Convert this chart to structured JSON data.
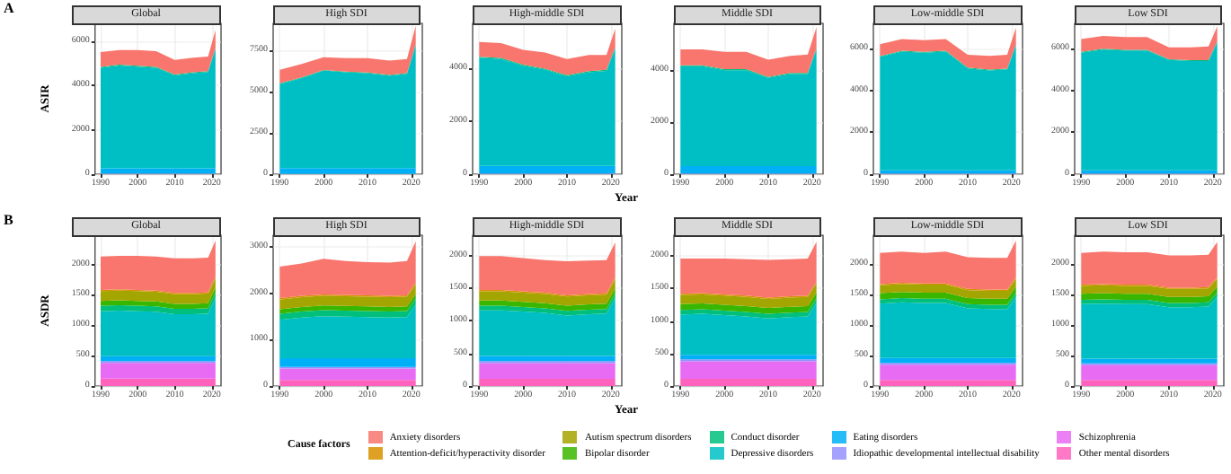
{
  "chart_data": [
    {
      "type": "area",
      "stacked": true,
      "title": "Global",
      "ylabel": "ASIR",
      "annotations": [
        "A"
      ],
      "legend": "bottom",
      "legend_title": "Cause factors",
      "grid": true,
      "x": [
        1990,
        1995,
        2000,
        2005,
        2010,
        2015,
        2019,
        2021
      ],
      "xlim": [
        1988.5,
        2022.5
      ],
      "xticks": [
        1990,
        2000,
        2010,
        2020
      ],
      "ylim": [
        0,
        6800
      ],
      "yticks": [
        0,
        2000,
        4000,
        6000
      ],
      "series": [
        {
          "name": "Other mental disorders",
          "color": "#ff62bc",
          "values": [
            20,
            20,
            20,
            20,
            20,
            20,
            20,
            20
          ]
        },
        {
          "name": "Schizophrenia",
          "color": "#e76bf3",
          "values": [
            null,
            null,
            null,
            null,
            null,
            null,
            null,
            null
          ]
        },
        {
          "name": "Idiopathic developmental intellectual disability",
          "color": "#9590ff",
          "values": [
            null,
            null,
            null,
            null,
            null,
            null,
            null,
            null
          ]
        },
        {
          "name": "Eating disorders",
          "color": "#00b0f6",
          "values": [
            240,
            240,
            240,
            240,
            240,
            240,
            240,
            240
          ]
        },
        {
          "name": "Depressive disorders",
          "color": "#00bfc4",
          "values": [
            4540,
            4640,
            4590,
            4540,
            4190,
            4290,
            4340,
            5390
          ]
        },
        {
          "name": "Conduct disorder",
          "color": "#00bf7d",
          "values": [
            40,
            40,
            40,
            40,
            40,
            40,
            40,
            40
          ]
        },
        {
          "name": "Bipolar disorder",
          "color": "#39b600",
          "values": [
            null,
            null,
            null,
            null,
            null,
            null,
            null,
            null
          ]
        },
        {
          "name": "Autism spectrum disorders",
          "color": "#a3a500",
          "values": [
            null,
            null,
            null,
            null,
            null,
            null,
            null,
            null
          ]
        },
        {
          "name": "Attention-deficit/hyperactivity disorder",
          "color": "#d89000",
          "values": [
            null,
            null,
            null,
            null,
            null,
            null,
            null,
            null
          ]
        },
        {
          "name": "Anxiety disorders",
          "color": "#f8766d",
          "values": [
            660,
            660,
            710,
            710,
            660,
            660,
            660,
            810
          ]
        }
      ]
    },
    {
      "type": "area",
      "stacked": true,
      "title": "High SDI",
      "grid": true,
      "x": [
        1990,
        1995,
        2000,
        2005,
        2010,
        2015,
        2019,
        2021
      ],
      "xlim": [
        1988.5,
        2022.5
      ],
      "xticks": [
        1990,
        2000,
        2010,
        2020
      ],
      "ylim": [
        0,
        9100
      ],
      "yticks": [
        0,
        2500,
        5000,
        7500
      ],
      "series": [
        {
          "color": "#ff62bc",
          "values": [
            20,
            20,
            20,
            20,
            20,
            20,
            20,
            20
          ]
        },
        {
          "color": "#e76bf3",
          "values": [
            null,
            null,
            null,
            null,
            null,
            null,
            null,
            null
          ]
        },
        {
          "color": "#9590ff",
          "values": [
            null,
            null,
            null,
            null,
            null,
            null,
            null,
            null
          ]
        },
        {
          "color": "#00b0f6",
          "values": [
            340,
            340,
            340,
            340,
            340,
            340,
            340,
            340
          ]
        },
        {
          "color": "#00bfc4",
          "values": [
            5090,
            5440,
            5890,
            5790,
            5740,
            5590,
            5690,
            7440
          ]
        },
        {
          "color": "#00bf7d",
          "values": [
            40,
            40,
            40,
            40,
            40,
            40,
            40,
            40
          ]
        },
        {
          "color": "#39b600",
          "values": [
            null,
            null,
            null,
            null,
            null,
            null,
            null,
            null
          ]
        },
        {
          "color": "#a3a500",
          "values": [
            null,
            null,
            null,
            null,
            null,
            null,
            null,
            null
          ]
        },
        {
          "color": "#d89000",
          "values": [
            null,
            null,
            null,
            null,
            null,
            null,
            null,
            null
          ]
        },
        {
          "color": "#f8766d",
          "values": [
            810,
            810,
            760,
            810,
            860,
            860,
            860,
            1110
          ]
        }
      ]
    },
    {
      "type": "area",
      "stacked": true,
      "title": "High-middle SDI",
      "grid": true,
      "x": [
        1990,
        1995,
        2000,
        2005,
        2010,
        2015,
        2019,
        2021
      ],
      "xlim": [
        1988.5,
        2022.5
      ],
      "xticks": [
        1990,
        2000,
        2010,
        2020
      ],
      "ylim": [
        0,
        5700
      ],
      "yticks": [
        0,
        2000,
        4000
      ],
      "series": [
        {
          "color": "#ff62bc",
          "values": [
            20,
            20,
            20,
            20,
            20,
            20,
            20,
            20
          ]
        },
        {
          "color": "#e76bf3",
          "values": [
            null,
            null,
            null,
            null,
            null,
            null,
            null,
            null
          ]
        },
        {
          "color": "#9590ff",
          "values": [
            null,
            null,
            null,
            null,
            null,
            null,
            null,
            null
          ]
        },
        {
          "color": "#00b0f6",
          "values": [
            290,
            290,
            290,
            290,
            290,
            290,
            290,
            290
          ]
        },
        {
          "color": "#00bfc4",
          "values": [
            4090,
            4040,
            3790,
            3640,
            3390,
            3540,
            3590,
            4440
          ]
        },
        {
          "color": "#00bf7d",
          "values": [
            40,
            40,
            40,
            40,
            40,
            40,
            40,
            40
          ]
        },
        {
          "color": "#39b600",
          "values": [
            null,
            null,
            null,
            null,
            null,
            null,
            null,
            null
          ]
        },
        {
          "color": "#a3a500",
          "values": [
            null,
            null,
            null,
            null,
            null,
            null,
            null,
            null
          ]
        },
        {
          "color": "#d89000",
          "values": [
            null,
            null,
            null,
            null,
            null,
            null,
            null,
            null
          ]
        },
        {
          "color": "#f8766d",
          "values": [
            560,
            560,
            560,
            610,
            610,
            610,
            560,
            710
          ]
        }
      ]
    },
    {
      "type": "area",
      "stacked": true,
      "title": "Middle SDI",
      "xlabel": "Year",
      "grid": true,
      "x": [
        1990,
        1995,
        2000,
        2005,
        2010,
        2015,
        2019,
        2021
      ],
      "xlim": [
        1988.5,
        2022.5
      ],
      "xticks": [
        1990,
        2000,
        2010,
        2020
      ],
      "ylim": [
        0,
        5800
      ],
      "yticks": [
        0,
        2000,
        4000
      ],
      "series": [
        {
          "color": "#ff62bc",
          "values": [
            20,
            20,
            20,
            20,
            20,
            20,
            20,
            20
          ]
        },
        {
          "color": "#e76bf3",
          "values": [
            null,
            null,
            null,
            null,
            null,
            null,
            null,
            null
          ]
        },
        {
          "color": "#9590ff",
          "values": [
            null,
            null,
            null,
            null,
            null,
            null,
            null,
            null
          ]
        },
        {
          "color": "#00b0f6",
          "values": [
            290,
            290,
            290,
            290,
            290,
            290,
            290,
            290
          ]
        },
        {
          "color": "#00bfc4",
          "values": [
            3840,
            3840,
            3690,
            3690,
            3390,
            3540,
            3540,
            4490
          ]
        },
        {
          "color": "#00bf7d",
          "values": [
            40,
            40,
            40,
            40,
            40,
            40,
            40,
            40
          ]
        },
        {
          "color": "#39b600",
          "values": [
            null,
            null,
            null,
            null,
            null,
            null,
            null,
            null
          ]
        },
        {
          "color": "#a3a500",
          "values": [
            null,
            null,
            null,
            null,
            null,
            null,
            null,
            null
          ]
        },
        {
          "color": "#d89000",
          "values": [
            null,
            null,
            null,
            null,
            null,
            null,
            null,
            null
          ]
        },
        {
          "color": "#f8766d",
          "values": [
            610,
            610,
            660,
            660,
            660,
            660,
            710,
            810
          ]
        }
      ]
    },
    {
      "type": "area",
      "stacked": true,
      "title": "Low-middle SDI",
      "grid": true,
      "x": [
        1990,
        1995,
        2000,
        2005,
        2010,
        2015,
        2019,
        2021
      ],
      "xlim": [
        1988.5,
        2022.5
      ],
      "xticks": [
        1990,
        2000,
        2010,
        2020
      ],
      "ylim": [
        0,
        7200
      ],
      "yticks": [
        0,
        2000,
        4000,
        6000
      ],
      "series": [
        {
          "color": "#ff62bc",
          "values": [
            20,
            20,
            20,
            20,
            20,
            20,
            20,
            20
          ]
        },
        {
          "color": "#e76bf3",
          "values": [
            null,
            null,
            null,
            null,
            null,
            null,
            null,
            null
          ]
        },
        {
          "color": "#9590ff",
          "values": [
            null,
            null,
            null,
            null,
            null,
            null,
            null,
            null
          ]
        },
        {
          "color": "#00b0f6",
          "values": [
            160,
            160,
            160,
            160,
            160,
            160,
            160,
            160
          ]
        },
        {
          "color": "#00bfc4",
          "values": [
            5420,
            5670,
            5620,
            5670,
            4870,
            4770,
            4820,
            5970
          ]
        },
        {
          "color": "#00bf7d",
          "values": [
            40,
            40,
            40,
            40,
            40,
            40,
            40,
            40
          ]
        },
        {
          "color": "#39b600",
          "values": [
            null,
            null,
            null,
            null,
            null,
            null,
            null,
            null
          ]
        },
        {
          "color": "#a3a500",
          "values": [
            null,
            null,
            null,
            null,
            null,
            null,
            null,
            null
          ]
        },
        {
          "color": "#d89000",
          "values": [
            null,
            null,
            null,
            null,
            null,
            null,
            null,
            null
          ]
        },
        {
          "color": "#f8766d",
          "values": [
            560,
            560,
            560,
            560,
            610,
            660,
            660,
            810
          ]
        }
      ]
    },
    {
      "type": "area",
      "stacked": true,
      "title": "Low SDI",
      "grid": true,
      "x": [
        1990,
        1995,
        2000,
        2005,
        2010,
        2015,
        2019,
        2021
      ],
      "xlim": [
        1988.5,
        2022.5
      ],
      "xticks": [
        1990,
        2000,
        2010,
        2020
      ],
      "ylim": [
        0,
        7200
      ],
      "yticks": [
        0,
        2000,
        4000,
        6000
      ],
      "series": [
        {
          "color": "#ff62bc",
          "values": [
            20,
            20,
            20,
            20,
            20,
            20,
            20,
            20
          ]
        },
        {
          "color": "#e76bf3",
          "values": [
            null,
            null,
            null,
            null,
            null,
            null,
            null,
            null
          ]
        },
        {
          "color": "#9590ff",
          "values": [
            null,
            null,
            null,
            null,
            null,
            null,
            null,
            null
          ]
        },
        {
          "color": "#00b0f6",
          "values": [
            160,
            160,
            160,
            160,
            160,
            160,
            160,
            160
          ]
        },
        {
          "color": "#00bfc4",
          "values": [
            5620,
            5770,
            5720,
            5720,
            5270,
            5220,
            5220,
            6120
          ]
        },
        {
          "color": "#00bf7d",
          "values": [
            40,
            40,
            40,
            40,
            40,
            40,
            40,
            40
          ]
        },
        {
          "color": "#39b600",
          "values": [
            null,
            null,
            null,
            null,
            null,
            null,
            null,
            null
          ]
        },
        {
          "color": "#a3a500",
          "values": [
            null,
            null,
            null,
            null,
            null,
            null,
            null,
            null
          ]
        },
        {
          "color": "#d89000",
          "values": [
            null,
            null,
            null,
            null,
            null,
            null,
            null,
            null
          ]
        },
        {
          "color": "#f8766d",
          "values": [
            610,
            610,
            610,
            610,
            560,
            610,
            660,
            710
          ]
        }
      ]
    },
    {
      "type": "area",
      "stacked": true,
      "title": "Global",
      "ylabel": "ASDR",
      "annotations": [
        "B"
      ],
      "grid": true,
      "x": [
        1990,
        1995,
        2000,
        2005,
        2010,
        2015,
        2019,
        2021
      ],
      "xlim": [
        1988.5,
        2022.5
      ],
      "xticks": [
        1990,
        2000,
        2010,
        2020
      ],
      "ylim": [
        0,
        2480
      ],
      "yticks": [
        0,
        500,
        1000,
        1500,
        2000
      ],
      "series": [
        {
          "color": "#ff62bc",
          "values": [
            120,
            120,
            120,
            120,
            120,
            120,
            120,
            120
          ]
        },
        {
          "color": "#e76bf3",
          "values": [
            260,
            260,
            260,
            260,
            260,
            260,
            260,
            260
          ]
        },
        {
          "color": "#9590ff",
          "values": [
            30,
            30,
            30,
            30,
            30,
            30,
            30,
            30
          ]
        },
        {
          "color": "#00b0f6",
          "values": [
            80,
            80,
            80,
            80,
            80,
            80,
            80,
            80
          ]
        },
        {
          "color": "#00bfc4",
          "values": [
            740,
            750,
            740,
            730,
            690,
            690,
            700,
            960
          ]
        },
        {
          "color": "#00bf7d",
          "values": [
            90,
            90,
            90,
            90,
            90,
            90,
            90,
            90
          ]
        },
        {
          "color": "#39b600",
          "values": [
            80,
            80,
            80,
            80,
            80,
            80,
            80,
            80
          ]
        },
        {
          "color": "#a3a500",
          "values": [
            160,
            160,
            160,
            160,
            160,
            160,
            160,
            160
          ]
        },
        {
          "color": "#d89000",
          "values": [
            20,
            20,
            20,
            20,
            20,
            20,
            20,
            20
          ]
        },
        {
          "color": "#f8766d",
          "values": [
            550,
            550,
            560,
            560,
            570,
            570,
            570,
            590
          ]
        }
      ]
    },
    {
      "type": "area",
      "stacked": true,
      "title": "High SDI",
      "grid": true,
      "x": [
        1990,
        1995,
        2000,
        2005,
        2010,
        2015,
        2019,
        2021
      ],
      "xlim": [
        1988.5,
        2022.5
      ],
      "xticks": [
        1990,
        2000,
        2010,
        2020
      ],
      "ylim": [
        0,
        3260
      ],
      "yticks": [
        0,
        1000,
        2000,
        3000
      ],
      "series": [
        {
          "color": "#ff62bc",
          "values": [
            130,
            130,
            130,
            130,
            130,
            130,
            130,
            130
          ]
        },
        {
          "color": "#e76bf3",
          "values": [
            250,
            250,
            250,
            250,
            250,
            250,
            250,
            250
          ]
        },
        {
          "color": "#9590ff",
          "values": [
            30,
            30,
            30,
            30,
            30,
            30,
            30,
            30
          ]
        },
        {
          "color": "#00b0f6",
          "values": [
            190,
            190,
            190,
            190,
            190,
            190,
            190,
            190
          ]
        },
        {
          "color": "#00bfc4",
          "values": [
            830,
            880,
            910,
            900,
            890,
            880,
            890,
            1160
          ]
        },
        {
          "color": "#00bf7d",
          "values": [
            130,
            130,
            130,
            130,
            130,
            130,
            130,
            130
          ]
        },
        {
          "color": "#39b600",
          "values": [
            100,
            100,
            100,
            100,
            100,
            100,
            100,
            100
          ]
        },
        {
          "color": "#a3a500",
          "values": [
            210,
            210,
            210,
            210,
            210,
            210,
            210,
            210
          ]
        },
        {
          "color": "#d89000",
          "values": [
            30,
            30,
            30,
            30,
            30,
            30,
            30,
            30
          ]
        },
        {
          "color": "#f8766d",
          "values": [
            680,
            700,
            770,
            730,
            720,
            720,
            740,
            900
          ]
        }
      ]
    },
    {
      "type": "area",
      "stacked": true,
      "title": "High-middle SDI",
      "grid": true,
      "x": [
        1990,
        1995,
        2000,
        2005,
        2010,
        2015,
        2019,
        2021
      ],
      "xlim": [
        1988.5,
        2022.5
      ],
      "xticks": [
        1990,
        2000,
        2010,
        2020
      ],
      "ylim": [
        0,
        2310
      ],
      "yticks": [
        0,
        500,
        1000,
        1500,
        2000
      ],
      "series": [
        {
          "color": "#ff62bc",
          "values": [
            110,
            110,
            110,
            110,
            110,
            110,
            110,
            110
          ]
        },
        {
          "color": "#e76bf3",
          "values": [
            240,
            240,
            240,
            240,
            240,
            240,
            240,
            240
          ]
        },
        {
          "color": "#9590ff",
          "values": [
            30,
            30,
            30,
            30,
            30,
            30,
            30,
            30
          ]
        },
        {
          "color": "#00b0f6",
          "values": [
            80,
            80,
            80,
            80,
            80,
            80,
            80,
            80
          ]
        },
        {
          "color": "#00bfc4",
          "values": [
            700,
            700,
            680,
            660,
            620,
            640,
            650,
            890
          ]
        },
        {
          "color": "#00bf7d",
          "values": [
            70,
            70,
            70,
            70,
            70,
            70,
            70,
            70
          ]
        },
        {
          "color": "#39b600",
          "values": [
            80,
            80,
            80,
            80,
            80,
            80,
            80,
            80
          ]
        },
        {
          "color": "#a3a500",
          "values": [
            140,
            140,
            140,
            140,
            140,
            140,
            140,
            140
          ]
        },
        {
          "color": "#d89000",
          "values": [
            20,
            20,
            20,
            20,
            20,
            20,
            20,
            20
          ]
        },
        {
          "color": "#f8766d",
          "values": [
            520,
            520,
            510,
            500,
            520,
            510,
            510,
            540
          ]
        }
      ]
    },
    {
      "type": "area",
      "stacked": true,
      "title": "Middle SDI",
      "xlabel": "Year",
      "grid": true,
      "x": [
        1990,
        1995,
        2000,
        2005,
        2010,
        2015,
        2019,
        2021
      ],
      "xlim": [
        1988.5,
        2022.5
      ],
      "xticks": [
        1990,
        2000,
        2010,
        2020
      ],
      "ylim": [
        0,
        2320
      ],
      "yticks": [
        0,
        500,
        1000,
        1500,
        2000
      ],
      "series": [
        {
          "color": "#ff62bc",
          "values": [
            110,
            110,
            110,
            110,
            110,
            110,
            110,
            110
          ]
        },
        {
          "color": "#e76bf3",
          "values": [
            270,
            270,
            270,
            270,
            270,
            270,
            270,
            270
          ]
        },
        {
          "color": "#9590ff",
          "values": [
            30,
            30,
            30,
            30,
            30,
            30,
            30,
            30
          ]
        },
        {
          "color": "#00b0f6",
          "values": [
            70,
            70,
            70,
            70,
            70,
            70,
            70,
            70
          ]
        },
        {
          "color": "#00bfc4",
          "values": [
            620,
            630,
            610,
            590,
            560,
            580,
            590,
            800
          ]
        },
        {
          "color": "#00bf7d",
          "values": [
            70,
            70,
            70,
            70,
            70,
            70,
            70,
            70
          ]
        },
        {
          "color": "#39b600",
          "values": [
            90,
            90,
            90,
            90,
            90,
            90,
            90,
            90
          ]
        },
        {
          "color": "#a3a500",
          "values": [
            140,
            140,
            140,
            140,
            140,
            140,
            140,
            140
          ]
        },
        {
          "color": "#d89000",
          "values": [
            20,
            20,
            20,
            20,
            20,
            20,
            20,
            20
          ]
        },
        {
          "color": "#f8766d",
          "values": [
            540,
            530,
            550,
            560,
            580,
            570,
            570,
            620
          ]
        }
      ]
    },
    {
      "type": "area",
      "stacked": true,
      "title": "Low-middle SDI",
      "grid": true,
      "x": [
        1990,
        1995,
        2000,
        2005,
        2010,
        2015,
        2019,
        2021
      ],
      "xlim": [
        1988.5,
        2022.5
      ],
      "xticks": [
        1990,
        2000,
        2010,
        2020
      ],
      "ylim": [
        0,
        2470
      ],
      "yticks": [
        0,
        500,
        1000,
        1500,
        2000
      ],
      "series": [
        {
          "color": "#ff62bc",
          "values": [
            100,
            100,
            100,
            100,
            100,
            100,
            100,
            100
          ]
        },
        {
          "color": "#e76bf3",
          "values": [
            250,
            250,
            250,
            250,
            250,
            250,
            250,
            250
          ]
        },
        {
          "color": "#9590ff",
          "values": [
            30,
            30,
            30,
            30,
            30,
            30,
            30,
            30
          ]
        },
        {
          "color": "#00b0f6",
          "values": [
            80,
            80,
            80,
            80,
            80,
            80,
            80,
            80
          ]
        },
        {
          "color": "#00bfc4",
          "values": [
            890,
            910,
            900,
            900,
            810,
            800,
            800,
            1000
          ]
        },
        {
          "color": "#00bf7d",
          "values": [
            70,
            70,
            70,
            70,
            70,
            70,
            70,
            70
          ]
        },
        {
          "color": "#39b600",
          "values": [
            100,
            100,
            100,
            100,
            100,
            100,
            100,
            100
          ]
        },
        {
          "color": "#a3a500",
          "values": [
            130,
            130,
            130,
            130,
            130,
            130,
            130,
            130
          ]
        },
        {
          "color": "#d89000",
          "values": [
            20,
            20,
            20,
            20,
            20,
            20,
            20,
            20
          ]
        },
        {
          "color": "#f8766d",
          "values": [
            510,
            510,
            500,
            520,
            520,
            520,
            520,
            600
          ]
        }
      ]
    },
    {
      "type": "area",
      "stacked": true,
      "title": "Low SDI",
      "grid": true,
      "x": [
        1990,
        1995,
        2000,
        2005,
        2010,
        2015,
        2019,
        2021
      ],
      "xlim": [
        1988.5,
        2022.5
      ],
      "xticks": [
        1990,
        2000,
        2010,
        2020
      ],
      "ylim": [
        0,
        2470
      ],
      "yticks": [
        0,
        500,
        1000,
        1500,
        2000
      ],
      "series": [
        {
          "color": "#ff62bc",
          "values": [
            100,
            100,
            100,
            100,
            100,
            100,
            100,
            100
          ]
        },
        {
          "color": "#e76bf3",
          "values": [
            240,
            240,
            240,
            240,
            240,
            240,
            240,
            240
          ]
        },
        {
          "color": "#9590ff",
          "values": [
            30,
            30,
            30,
            30,
            30,
            30,
            30,
            30
          ]
        },
        {
          "color": "#00b0f6",
          "values": [
            80,
            80,
            80,
            80,
            80,
            80,
            80,
            80
          ]
        },
        {
          "color": "#00bfc4",
          "values": [
            890,
            900,
            890,
            890,
            840,
            840,
            850,
            1010
          ]
        },
        {
          "color": "#00bf7d",
          "values": [
            70,
            70,
            70,
            70,
            70,
            70,
            70,
            70
          ]
        },
        {
          "color": "#39b600",
          "values": [
            100,
            100,
            100,
            100,
            100,
            100,
            100,
            100
          ]
        },
        {
          "color": "#a3a500",
          "values": [
            130,
            130,
            130,
            130,
            130,
            130,
            130,
            130
          ]
        },
        {
          "color": "#d89000",
          "values": [
            20,
            20,
            20,
            20,
            20,
            20,
            20,
            20
          ]
        },
        {
          "color": "#f8766d",
          "values": [
            520,
            530,
            530,
            530,
            530,
            530,
            530,
            580
          ]
        }
      ]
    }
  ]
}
